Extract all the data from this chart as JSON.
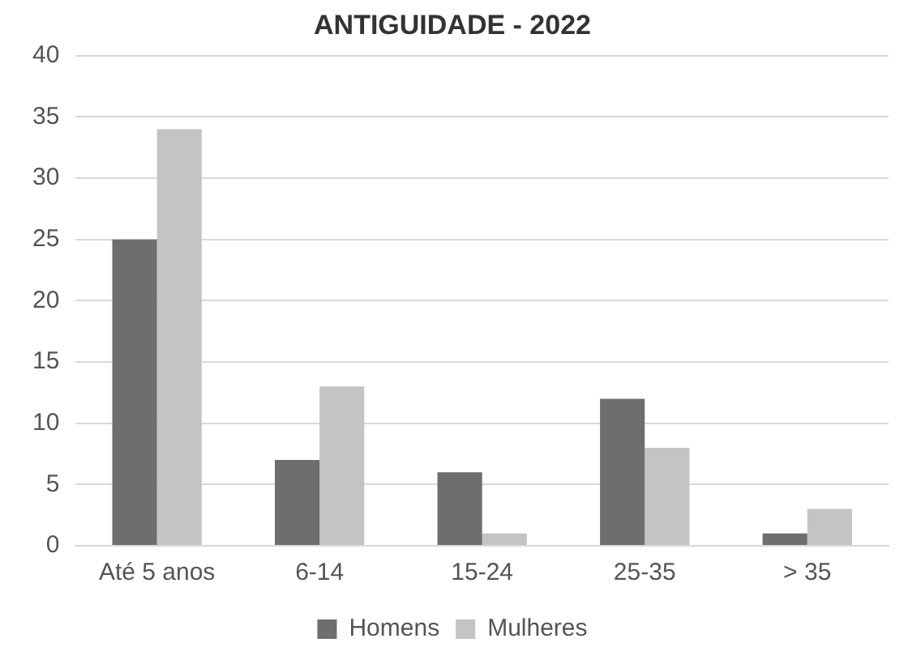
{
  "chart_data": {
    "type": "bar",
    "title": "ANTIGUIDADE - 2022",
    "categories": [
      "Até 5 anos",
      "6-14",
      "15-24",
      "25-35",
      "> 35"
    ],
    "series": [
      {
        "name": "Homens",
        "color": "#6e6e6e",
        "values": [
          25,
          7,
          6,
          12,
          1
        ]
      },
      {
        "name": "Mulheres",
        "color": "#c4c4c4",
        "values": [
          34,
          13,
          1,
          8,
          3
        ]
      }
    ],
    "ylim": [
      0,
      40
    ],
    "yticks": [
      0,
      5,
      10,
      15,
      20,
      25,
      30,
      35,
      40
    ],
    "grid": "y",
    "legend": "bottom"
  }
}
